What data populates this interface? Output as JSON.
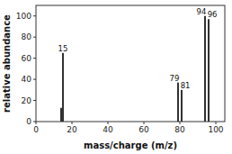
{
  "chart_data": {
    "type": "bar",
    "x": [
      14,
      15,
      79,
      81,
      94,
      96
    ],
    "values": [
      13,
      65,
      37,
      30,
      100,
      97
    ],
    "color": "#000000",
    "xlim": [
      0,
      105
    ],
    "ylim": [
      0,
      110
    ],
    "xticks": [
      0,
      20,
      40,
      60,
      80,
      100
    ],
    "yticks": [
      0,
      20,
      40,
      60,
      80,
      100
    ],
    "x_label": "mass/charge (m/z)",
    "y_label": "relative abundance",
    "grid": false,
    "annotations": [
      {
        "text": "15",
        "x": 15,
        "y": 65
      },
      {
        "text": "79",
        "x": 79,
        "y": 37
      },
      {
        "text": "81",
        "x": 81,
        "y": 30
      },
      {
        "text": "94",
        "x": 94,
        "y": 100
      },
      {
        "text": "96",
        "x": 96,
        "y": 97
      }
    ]
  }
}
